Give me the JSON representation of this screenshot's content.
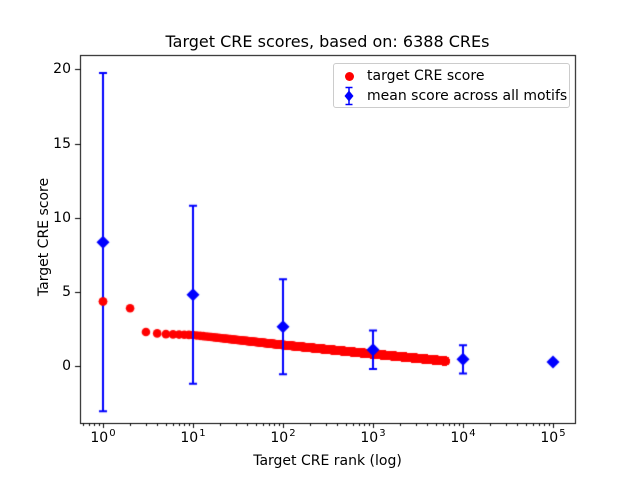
{
  "figure": {
    "title": "Target CRE scores, based on: 6388 CREs",
    "xlabel": "Target CRE rank (log)",
    "ylabel": "Target CRE score"
  },
  "legend": {
    "position": "upper right",
    "items": [
      {
        "label": "target CRE score",
        "marker": "red-circle"
      },
      {
        "label": "mean score across all motifs",
        "marker": "blue-diamond-errorbar"
      }
    ]
  },
  "chart_data": {
    "type": "scatter",
    "title": "Target CRE scores, based on: 6388 CREs",
    "xlabel": "Target CRE rank (log)",
    "ylabel": "Target CRE score",
    "x_scale": "log",
    "grid": false,
    "legend_position": "upper right",
    "xlim_log10": [
      -0.2556,
      5.2444
    ],
    "ylim": [
      -3.84,
      20.97
    ],
    "x_ticks": [
      {
        "value": 1,
        "base": "10",
        "exp": "0"
      },
      {
        "value": 10,
        "base": "10",
        "exp": "1"
      },
      {
        "value": 100,
        "base": "10",
        "exp": "2"
      },
      {
        "value": 1000,
        "base": "10",
        "exp": "3"
      },
      {
        "value": 10000,
        "base": "10",
        "exp": "4"
      },
      {
        "value": 100000,
        "base": "10",
        "exp": "5"
      }
    ],
    "y_ticks": [
      0,
      5,
      10,
      15,
      20
    ],
    "colors": {
      "target": "#ff0000",
      "mean": "#0000ff",
      "axis": "#000000"
    },
    "series": [
      {
        "name": "target CRE score",
        "type": "scatter",
        "marker": "circle",
        "color": "#ff0000",
        "n_points": 6388,
        "ranks": "integers 1..6388",
        "interpolation": "linear in log10(rank) between anchors",
        "score_anchors": [
          [
            1,
            4.35
          ],
          [
            2,
            3.9
          ],
          [
            3,
            2.3
          ],
          [
            4,
            2.2
          ],
          [
            5,
            2.15
          ],
          [
            10,
            2.09
          ],
          [
            100,
            1.42
          ],
          [
            1000,
            0.81
          ],
          [
            6388,
            0.34
          ]
        ]
      },
      {
        "name": "mean score across all motifs",
        "type": "errorbar",
        "marker": "diamond",
        "color": "#0000ff",
        "x": [
          1,
          10,
          100,
          1000,
          10000,
          100000
        ],
        "y": [
          8.35,
          4.8,
          2.65,
          1.1,
          0.45,
          0.27
        ],
        "yerr": [
          11.4,
          6.0,
          3.2,
          1.3,
          0.95,
          0.1
        ]
      }
    ]
  }
}
